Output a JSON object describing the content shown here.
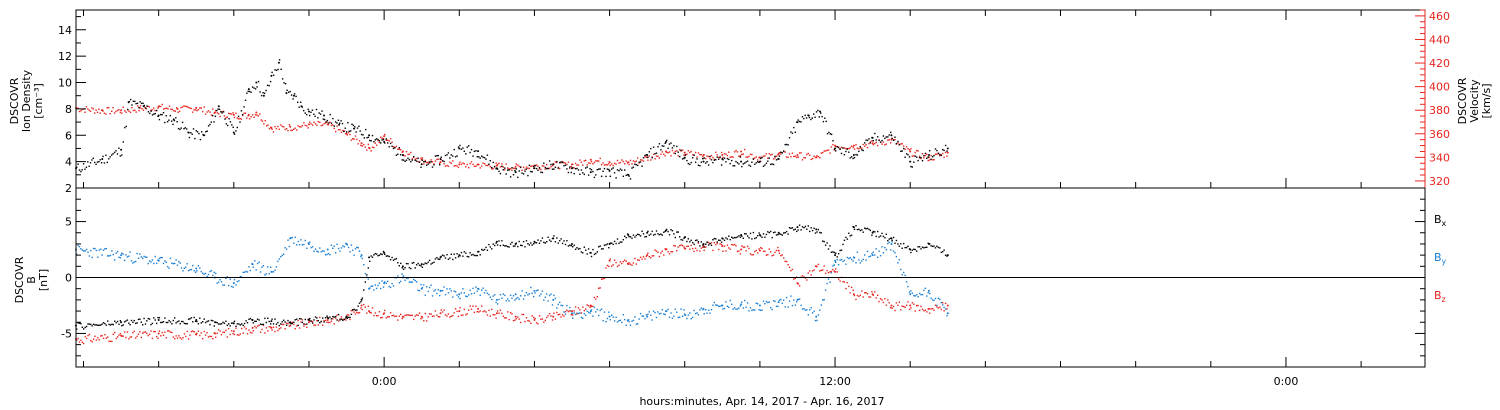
{
  "colors": {
    "black": "#000000",
    "red": "#e8251f",
    "blue": "#1a7fd4"
  },
  "xaxis": {
    "label": "hours:minutes, Apr. 14, 2017 - Apr. 16, 2017",
    "ticks": [
      {
        "t": 0,
        "label": "0:00"
      },
      {
        "t": 12,
        "label": "12:00"
      },
      {
        "t": 24,
        "label": "0:00"
      }
    ],
    "minor_step_hours": 2,
    "range_hours": [
      -8.2,
      27.7
    ]
  },
  "chart_data": [
    {
      "type": "scatter",
      "panel": "top",
      "ylabel": [
        "DSCOVR",
        "Ion Density",
        "[cm⁻³]"
      ],
      "ylim": [
        2,
        15.5
      ],
      "yticks": [
        "2",
        "4",
        "6",
        "8",
        "10",
        "12",
        "14"
      ],
      "y2label": [
        "DSCOVR",
        "Velocity",
        "[km/s]"
      ],
      "y2lim": [
        314,
        465
      ],
      "y2ticks": [
        "320",
        "340",
        "360",
        "380",
        "400",
        "420",
        "440",
        "460"
      ],
      "series": [
        {
          "key": "density",
          "axis": "left",
          "color": "black",
          "x": [
            -8.2,
            -7.5,
            -7,
            -6.8,
            -6.4,
            -6,
            -5.6,
            -5.2,
            -4.8,
            -4.4,
            -4,
            -3.6,
            -3.4,
            -3.2,
            -3,
            -2.8,
            -2.6,
            -2.4,
            -2.2,
            -2,
            -1.6,
            -1.2,
            -0.8,
            -0.4,
            0,
            0.5,
            1,
            1.5,
            2,
            2.5,
            3,
            3.5,
            4,
            4.5,
            5,
            5.5,
            6,
            6.5,
            7,
            7.5,
            8,
            8.5,
            9,
            9.5,
            10,
            10.5,
            11,
            11.3,
            11.6,
            12,
            12.5,
            13,
            13.5,
            14,
            14.5,
            15
          ],
          "y": [
            3.5,
            4.2,
            4.9,
            8.5,
            8.2,
            7.5,
            7.2,
            6.2,
            6.0,
            8.2,
            6.2,
            9.5,
            10.0,
            9.0,
            10.5,
            11.5,
            9.2,
            9.0,
            8.2,
            7.8,
            7.5,
            6.8,
            6.5,
            6.0,
            5.5,
            4.5,
            3.8,
            4.2,
            5.0,
            4.8,
            3.5,
            3.2,
            3.5,
            3.8,
            3.5,
            3.2,
            3.3,
            3.0,
            4.5,
            5.5,
            4.3,
            4.0,
            4.2,
            4.0,
            4.0,
            4.2,
            7.0,
            7.5,
            7.8,
            5.0,
            4.5,
            5.8,
            6.0,
            4.0,
            4.5,
            5.0
          ]
        },
        {
          "key": "velocity",
          "axis": "right",
          "color": "red",
          "x": [
            -8.2,
            -7.5,
            -7,
            -6.5,
            -6,
            -5.5,
            -5,
            -4.5,
            -4,
            -3.6,
            -3.4,
            -3,
            -2.5,
            -2,
            -1.5,
            -1,
            -0.6,
            -0.4,
            0,
            0.5,
            1,
            1.5,
            2,
            2.5,
            3,
            3.5,
            4,
            4.5,
            5,
            5.5,
            6,
            6.5,
            7,
            7.5,
            8,
            8.5,
            9,
            9.5,
            10,
            10.5,
            11,
            11.5,
            12,
            12.5,
            13,
            13.5,
            14,
            14.5,
            15
          ],
          "y": [
            382,
            380,
            380,
            382,
            383,
            381,
            382,
            378,
            376,
            376,
            378,
            365,
            366,
            368,
            368,
            360,
            352,
            348,
            358,
            345,
            338,
            336,
            334,
            334,
            333,
            332,
            333,
            334,
            334,
            338,
            336,
            336,
            340,
            345,
            344,
            342,
            342,
            345,
            340,
            343,
            342,
            340,
            350,
            350,
            352,
            355,
            345,
            340,
            344
          ]
        }
      ]
    },
    {
      "type": "scatter",
      "panel": "bottom",
      "ylabel": [
        "DSCOVR",
        "B",
        "[nT]"
      ],
      "ylim": [
        -8,
        8
      ],
      "yticks": [
        "-5",
        "0",
        "5"
      ],
      "series": [
        {
          "name": "Bx",
          "color": "black",
          "x": [
            -8.2,
            -7,
            -6,
            -5,
            -4.5,
            -4,
            -3.5,
            -3,
            -2.5,
            -2,
            -1.5,
            -1,
            -0.6,
            -0.4,
            0,
            0.5,
            1,
            1.5,
            2,
            2.5,
            3,
            3.5,
            4,
            4.5,
            5,
            5.5,
            6,
            6.5,
            7,
            7.5,
            8,
            8.5,
            9,
            9.5,
            10,
            10.5,
            11,
            11.5,
            12,
            12.5,
            13,
            13.5,
            14,
            14.5,
            15
          ],
          "y": [
            -4.3,
            -4.0,
            -3.8,
            -3.8,
            -4.0,
            -4.1,
            -3.8,
            -3.9,
            -4.0,
            -3.8,
            -3.6,
            -3.5,
            -2.0,
            1.8,
            2.2,
            1.0,
            1.2,
            1.8,
            2.0,
            2.3,
            3.2,
            3.0,
            3.2,
            3.5,
            3.0,
            2.2,
            3.0,
            3.8,
            4.0,
            4.2,
            3.6,
            3.0,
            3.5,
            3.8,
            3.8,
            4.0,
            4.5,
            4.3,
            2.0,
            4.5,
            4.0,
            3.5,
            2.5,
            3.0,
            2.0
          ]
        },
        {
          "name": "By",
          "color": "blue",
          "x": [
            -8.2,
            -7,
            -6,
            -5,
            -4.5,
            -4,
            -3.5,
            -3,
            -2.5,
            -2,
            -1.5,
            -1,
            -0.6,
            -0.4,
            0,
            0.5,
            1,
            1.5,
            2,
            2.5,
            3,
            3.5,
            4,
            4.5,
            5,
            5.5,
            6,
            6.5,
            7,
            7.5,
            8,
            8.5,
            9,
            9.5,
            10,
            10.5,
            11,
            11.5,
            12,
            12.5,
            13,
            13.5,
            14,
            14.5,
            15
          ],
          "y": [
            2.5,
            2.0,
            1.5,
            0.8,
            0.0,
            -0.5,
            1.2,
            0.5,
            3.5,
            3.0,
            2.5,
            3.0,
            2.0,
            -1.0,
            -0.5,
            0.0,
            -1.0,
            -1.2,
            -1.5,
            -1.0,
            -2.0,
            -1.5,
            -1.2,
            -2.0,
            -3.2,
            -3.0,
            -3.5,
            -3.8,
            -3.5,
            -3.0,
            -3.3,
            -2.8,
            -2.5,
            -2.4,
            -2.5,
            -2.2,
            -2.0,
            -3.5,
            1.5,
            1.8,
            2.0,
            3.0,
            -1.5,
            -1.2,
            -3.2
          ]
        },
        {
          "name": "Bz",
          "color": "red",
          "x": [
            -8.2,
            -7,
            -6,
            -5,
            -4.5,
            -4,
            -3.5,
            -3,
            -2.5,
            -2,
            -1.5,
            -1,
            -0.6,
            -0.4,
            0,
            0.5,
            1,
            1.5,
            2,
            2.5,
            3,
            3.5,
            4,
            4.5,
            5,
            5.5,
            6,
            6.5,
            7,
            7.5,
            8,
            8.5,
            9,
            9.5,
            10,
            10.5,
            11,
            11.5,
            12,
            12.5,
            13,
            13.5,
            14,
            14.5,
            15
          ],
          "y": [
            -5.5,
            -5.2,
            -5.0,
            -5.1,
            -5.0,
            -4.8,
            -4.5,
            -4.5,
            -4.3,
            -4.0,
            -3.8,
            -3.5,
            -2.5,
            -3.0,
            -3.2,
            -3.5,
            -3.5,
            -3.2,
            -3.0,
            -2.8,
            -3.2,
            -3.5,
            -3.8,
            -3.5,
            -3.0,
            -2.5,
            1.5,
            1.2,
            2.0,
            2.5,
            2.6,
            2.8,
            2.8,
            2.5,
            2.4,
            2.4,
            -0.5,
            1.0,
            0.5,
            -1.5,
            -1.5,
            -2.5,
            -2.5,
            -2.8,
            -2.5
          ]
        }
      ]
    }
  ]
}
